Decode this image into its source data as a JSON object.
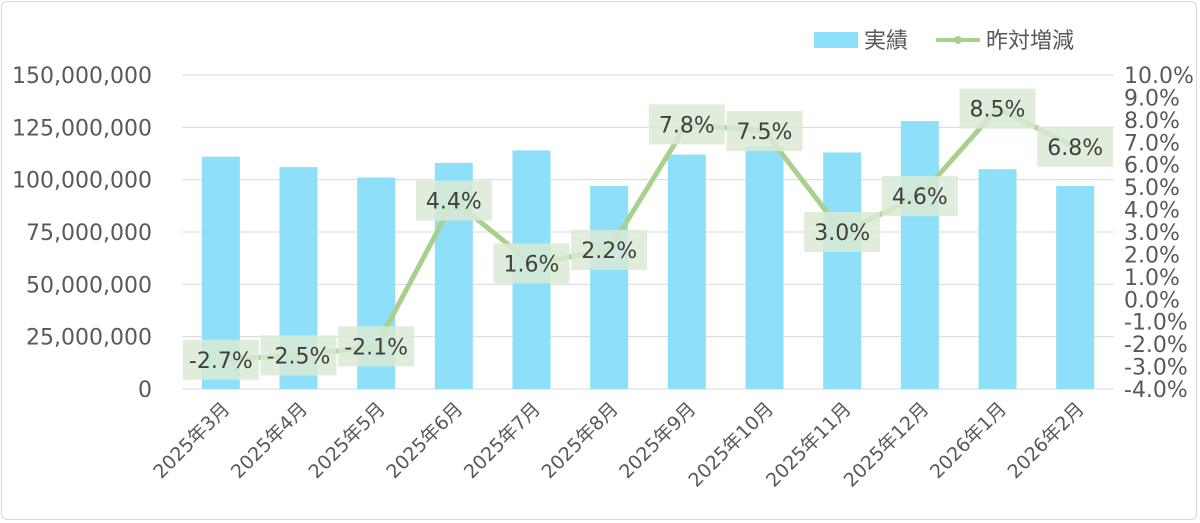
{
  "chart_data": {
    "type": "bar",
    "categories": [
      "2025年3月",
      "2025年4月",
      "2025年5月",
      "2025年6月",
      "2025年7月",
      "2025年8月",
      "2025年9月",
      "2025年10月",
      "2025年11月",
      "2025年12月",
      "2026年1月",
      "2026年2月"
    ],
    "series": [
      {
        "name": "実績",
        "type": "bar",
        "axis": "left",
        "color": "#8ee0fa",
        "values": [
          111000000,
          106000000,
          101000000,
          108000000,
          114000000,
          97000000,
          112000000,
          116000000,
          113000000,
          128000000,
          105000000,
          97000000
        ]
      },
      {
        "name": "昨対増減",
        "type": "line",
        "axis": "right",
        "color": "#a9d18e",
        "values": [
          -2.7,
          -2.5,
          -2.1,
          4.4,
          1.6,
          2.2,
          7.8,
          7.5,
          3.0,
          4.6,
          8.5,
          6.8
        ],
        "data_labels": [
          "-2.7%",
          "-2.5%",
          "-2.1%",
          "4.4%",
          "1.6%",
          "2.2%",
          "7.8%",
          "7.5%",
          "3.0%",
          "4.6%",
          "8.5%",
          "6.8%"
        ]
      }
    ],
    "y_left": {
      "lim": [
        0,
        150000000
      ],
      "ticks": [
        0,
        25000000,
        50000000,
        75000000,
        100000000,
        125000000,
        150000000
      ],
      "tick_labels": [
        "0",
        "25,000,000",
        "50,000,000",
        "75,000,000",
        "100,000,000",
        "125,000,000",
        "150,000,000"
      ]
    },
    "y_right": {
      "lim": [
        -4.0,
        10.0
      ],
      "ticks": [
        -4,
        -3,
        -2,
        -1,
        0,
        1,
        2,
        3,
        4,
        5,
        6,
        7,
        8,
        9,
        10
      ],
      "tick_labels": [
        "-4.0%",
        "-3.0%",
        "-2.0%",
        "-1.0%",
        "0.0%",
        "1.0%",
        "2.0%",
        "3.0%",
        "4.0%",
        "5.0%",
        "6.0%",
        "7.0%",
        "8.0%",
        "9.0%",
        "10.0%"
      ]
    },
    "grid": true,
    "legend": "top-right",
    "label_box_color": "#d9ead3",
    "grid_color": "#d9d9d9"
  }
}
